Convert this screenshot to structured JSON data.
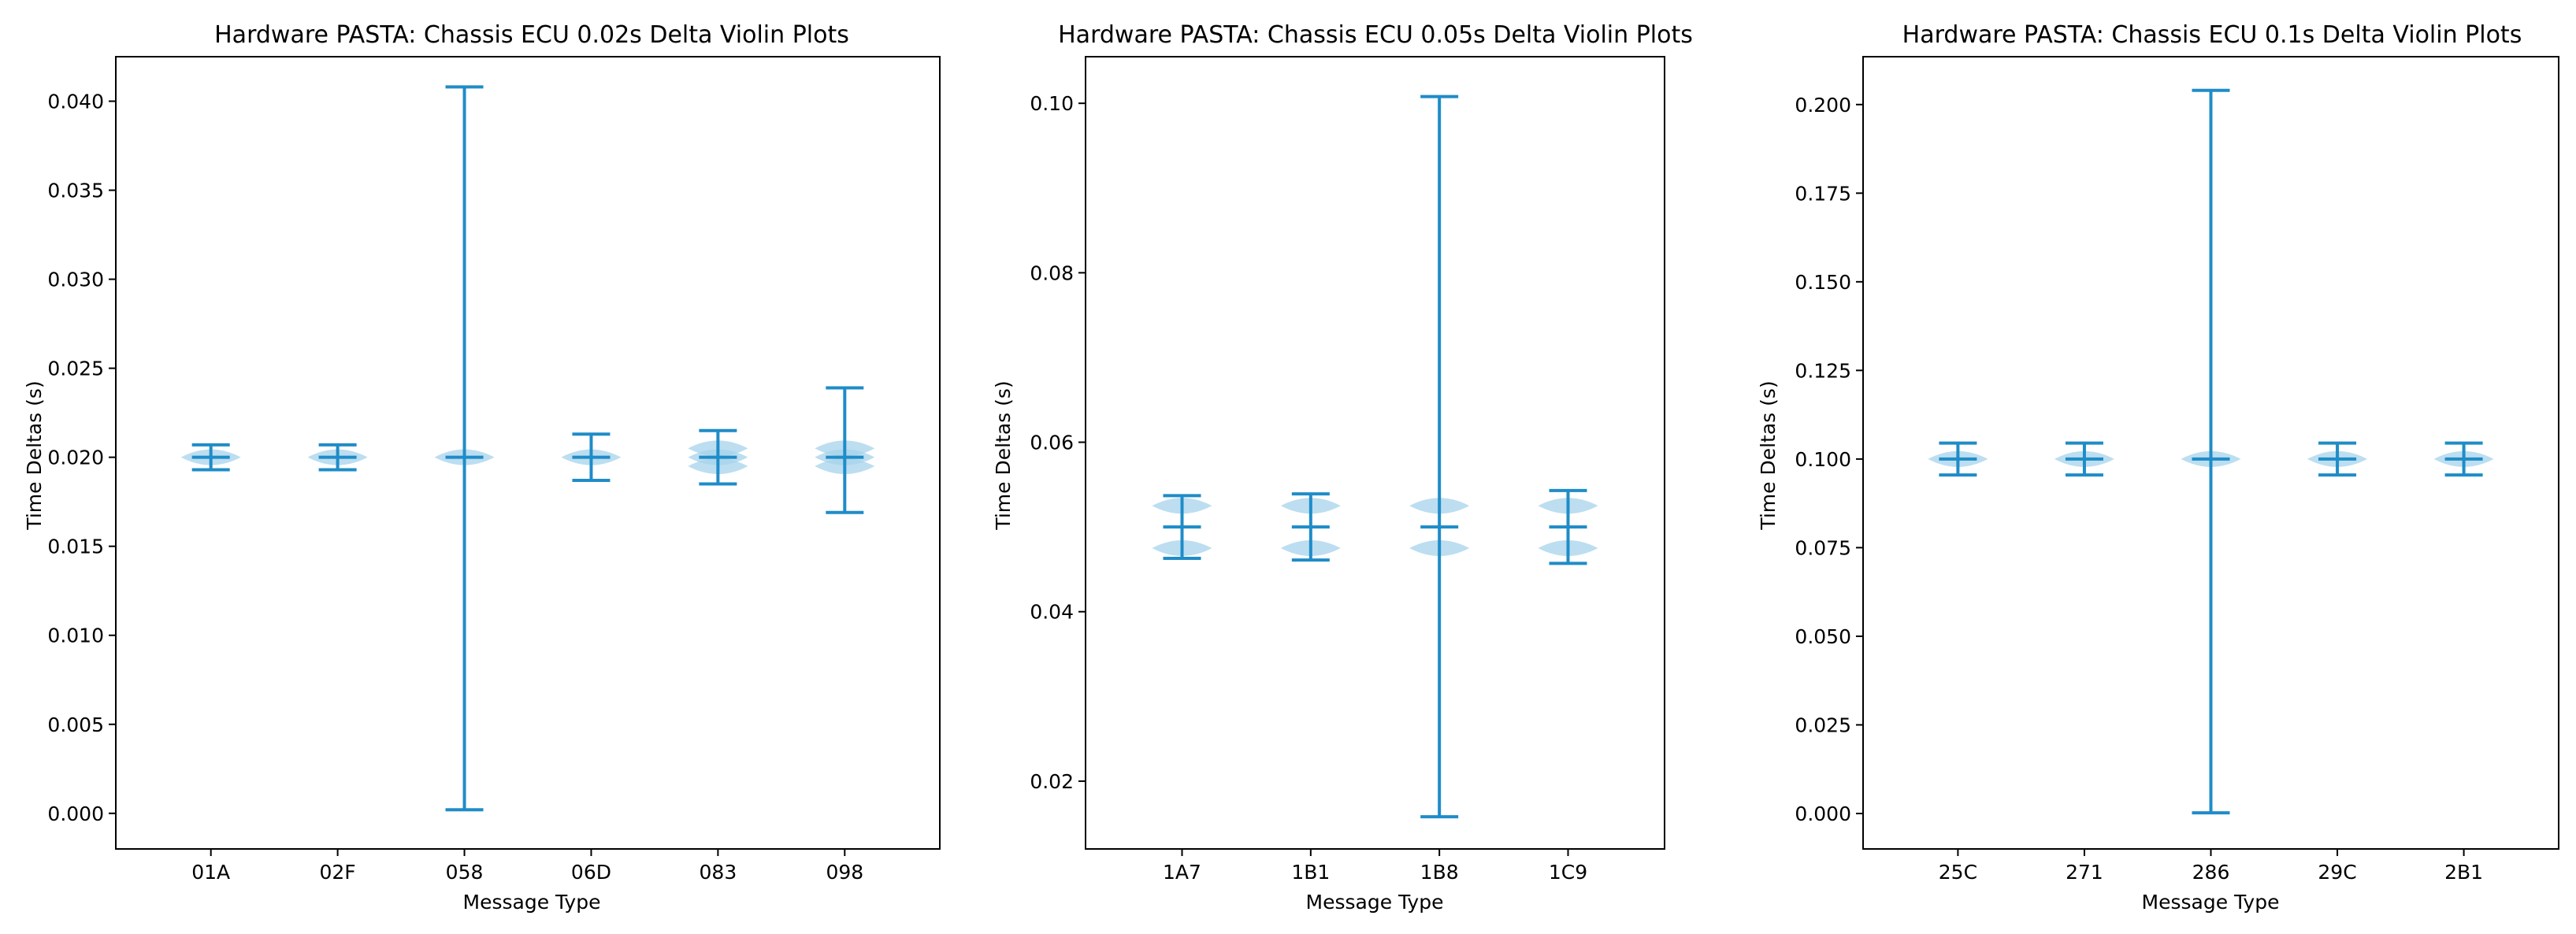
{
  "colors": {
    "line": "#1f8cc8",
    "body": "#a6d3eb",
    "frame": "#000000",
    "background": "#ffffff"
  },
  "chart_data": [
    {
      "type": "violin",
      "title": "Hardware PASTA: Chassis ECU 0.02s Delta Violin Plots",
      "xlabel": "Message Type",
      "ylabel": "Time Deltas (s)",
      "ylim": [
        -0.002,
        0.0425
      ],
      "yticks": [
        0.0,
        0.005,
        0.01,
        0.015,
        0.02,
        0.025,
        0.03,
        0.035,
        0.04
      ],
      "ytick_labels": [
        "0.000",
        "0.005",
        "0.010",
        "0.015",
        "0.020",
        "0.025",
        "0.030",
        "0.035",
        "0.040"
      ],
      "categories": [
        "01A",
        "02F",
        "058",
        "06D",
        "083",
        "098"
      ],
      "min": [
        0.0193,
        0.0193,
        0.0002,
        0.0187,
        0.0185,
        0.0169
      ],
      "mean": [
        0.02,
        0.02,
        0.02,
        0.02,
        0.02,
        0.02
      ],
      "max": [
        0.0207,
        0.0207,
        0.0408,
        0.0213,
        0.0215,
        0.0239
      ],
      "modes": [
        [
          0.02
        ],
        [
          0.02
        ],
        [
          0.02
        ],
        [
          0.02
        ],
        [
          0.0195,
          0.02,
          0.0205
        ],
        [
          0.0195,
          0.02,
          0.0205
        ]
      ]
    },
    {
      "type": "violin",
      "title": "Hardware PASTA: Chassis ECU 0.05s Delta Violin Plots",
      "xlabel": "Message Type",
      "ylabel": "Time Deltas (s)",
      "ylim": [
        0.012,
        0.1055
      ],
      "yticks": [
        0.02,
        0.04,
        0.06,
        0.08,
        0.1
      ],
      "ytick_labels": [
        "0.02",
        "0.04",
        "0.06",
        "0.08",
        "0.10"
      ],
      "categories": [
        "1A7",
        "1B1",
        "1B8",
        "1C9"
      ],
      "min": [
        0.0463,
        0.0461,
        0.0158,
        0.0457
      ],
      "mean": [
        0.05,
        0.05,
        0.05,
        0.05
      ],
      "max": [
        0.0537,
        0.0539,
        0.1008,
        0.0543
      ],
      "modes": [
        [
          0.0475,
          0.0525
        ],
        [
          0.0475,
          0.0525
        ],
        [
          0.0475,
          0.0525
        ],
        [
          0.0475,
          0.0525
        ]
      ]
    },
    {
      "type": "violin",
      "title": "Hardware PASTA: Chassis ECU 0.1s Delta Violin Plots",
      "xlabel": "Message Type",
      "ylabel": "Time Deltas (s)",
      "ylim": [
        -0.01,
        0.2135
      ],
      "yticks": [
        0.0,
        0.025,
        0.05,
        0.075,
        0.1,
        0.125,
        0.15,
        0.175,
        0.2
      ],
      "ytick_labels": [
        "0.000",
        "0.025",
        "0.050",
        "0.075",
        "0.100",
        "0.125",
        "0.150",
        "0.175",
        "0.200"
      ],
      "categories": [
        "25C",
        "271",
        "286",
        "29C",
        "2B1"
      ],
      "min": [
        0.0955,
        0.0955,
        0.0002,
        0.0955,
        0.0955
      ],
      "mean": [
        0.1,
        0.1,
        0.1,
        0.1,
        0.1
      ],
      "max": [
        0.1045,
        0.1045,
        0.204,
        0.1045,
        0.1045
      ],
      "modes": [
        [
          0.1
        ],
        [
          0.1
        ],
        [
          0.1
        ],
        [
          0.1
        ],
        [
          0.1
        ]
      ]
    }
  ]
}
